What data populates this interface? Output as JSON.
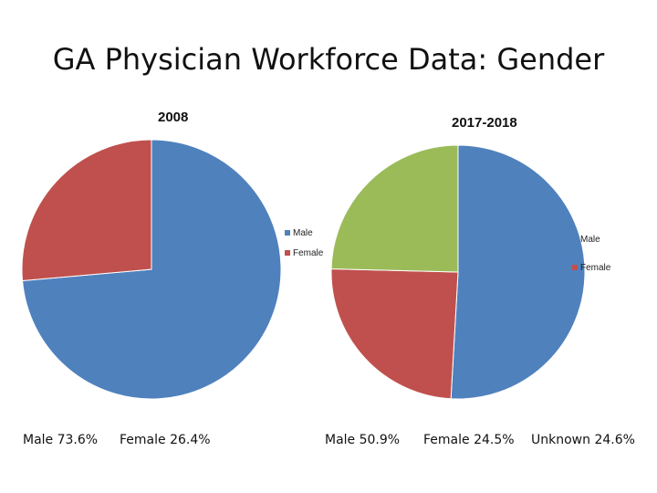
{
  "title": "GA Physician Workforce Data: Gender",
  "colors": {
    "male": "#4F81BD",
    "female": "#C0504D",
    "unknown": "#9BBB59"
  },
  "chart_data": [
    {
      "type": "pie",
      "title": "2008",
      "labels": [
        "Male",
        "Female"
      ],
      "values": [
        73.6,
        26.4
      ],
      "legend": [
        "Male",
        "Female"
      ]
    },
    {
      "type": "pie",
      "title": "2017-2018",
      "labels": [
        "Male",
        "Female",
        "Unknown"
      ],
      "values": [
        50.9,
        24.5,
        24.6
      ],
      "legend": [
        "Male",
        "Female"
      ]
    }
  ],
  "footer_labels": [
    "Male 73.6%",
    "Female 26.4%",
    "Male 50.9%",
    "Female 24.5%",
    "Unknown 24.6%"
  ]
}
